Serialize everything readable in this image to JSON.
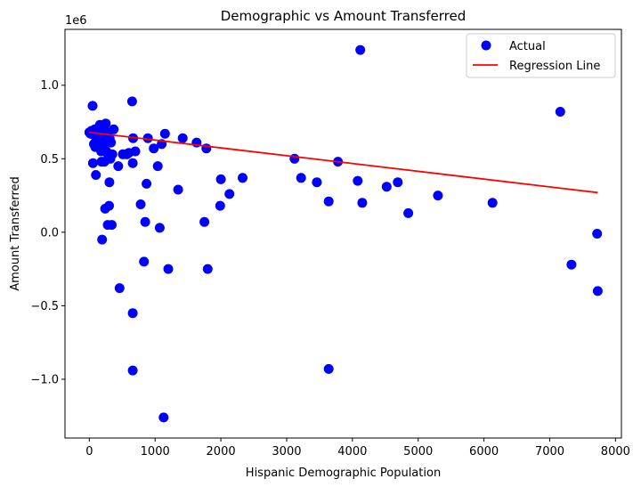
{
  "chart_data": {
    "type": "scatter",
    "title": "Demographic vs Amount Transferred",
    "xlabel": "Hispanic Demographic Population",
    "ylabel": "Amount Transferred",
    "y_offset_label": "1e6",
    "xlim": [
      -370,
      8090
    ],
    "ylim": [
      -1.4,
      1.38
    ],
    "xticks": [
      0,
      1000,
      2000,
      3000,
      4000,
      5000,
      6000,
      7000,
      8000
    ],
    "xtick_labels": [
      "0",
      "1000",
      "2000",
      "3000",
      "4000",
      "5000",
      "6000",
      "7000",
      "8000"
    ],
    "yticks": [
      -1.0,
      -0.5,
      0.0,
      0.5,
      1.0
    ],
    "ytick_labels": [
      "−1.0",
      "−0.5",
      "0.0",
      "0.5",
      "1.0"
    ],
    "grid": false,
    "legend_position": "top-right",
    "series": [
      {
        "name": "Actual",
        "kind": "scatter",
        "color": "#0000ff",
        "points": [
          [
            0,
            0.68
          ],
          [
            20,
            0.67
          ],
          [
            35,
            0.69
          ],
          [
            50,
            0.86
          ],
          [
            55,
            0.47
          ],
          [
            70,
            0.6
          ],
          [
            75,
            0.66
          ],
          [
            85,
            0.7
          ],
          [
            90,
            0.58
          ],
          [
            100,
            0.39
          ],
          [
            110,
            0.64
          ],
          [
            120,
            0.68
          ],
          [
            130,
            0.62
          ],
          [
            140,
            0.71
          ],
          [
            150,
            0.66
          ],
          [
            160,
            0.73
          ],
          [
            170,
            0.69
          ],
          [
            180,
            0.55
          ],
          [
            185,
            0.48
          ],
          [
            190,
            0.57
          ],
          [
            195,
            -0.05
          ],
          [
            200,
            0.63
          ],
          [
            210,
            0.59
          ],
          [
            220,
            0.71
          ],
          [
            230,
            0.48
          ],
          [
            240,
            0.16
          ],
          [
            250,
            0.74
          ],
          [
            260,
            0.55
          ],
          [
            270,
            0.68
          ],
          [
            280,
            0.05
          ],
          [
            290,
            0.52
          ],
          [
            300,
            0.18
          ],
          [
            305,
            0.34
          ],
          [
            310,
            0.64
          ],
          [
            320,
            0.5
          ],
          [
            330,
            0.61
          ],
          [
            340,
            0.05
          ],
          [
            350,
            0.53
          ],
          [
            370,
            0.7
          ],
          [
            440,
            0.45
          ],
          [
            460,
            -0.38
          ],
          [
            510,
            0.53
          ],
          [
            570,
            0.53
          ],
          [
            600,
            0.54
          ],
          [
            650,
            0.89
          ],
          [
            660,
            0.47
          ],
          [
            665,
            0.64
          ],
          [
            660,
            -0.55
          ],
          [
            660,
            -0.94
          ],
          [
            700,
            0.55
          ],
          [
            780,
            0.19
          ],
          [
            830,
            -0.2
          ],
          [
            850,
            0.07
          ],
          [
            870,
            0.33
          ],
          [
            890,
            0.64
          ],
          [
            980,
            0.57
          ],
          [
            1040,
            0.45
          ],
          [
            1070,
            0.03
          ],
          [
            1100,
            0.6
          ],
          [
            1130,
            -1.26
          ],
          [
            1150,
            0.67
          ],
          [
            1200,
            -0.25
          ],
          [
            1350,
            0.29
          ],
          [
            1420,
            0.64
          ],
          [
            1630,
            0.61
          ],
          [
            1750,
            0.07
          ],
          [
            1780,
            0.57
          ],
          [
            1800,
            -0.25
          ],
          [
            1990,
            0.18
          ],
          [
            2000,
            0.36
          ],
          [
            2130,
            0.26
          ],
          [
            2330,
            0.37
          ],
          [
            3120,
            0.5
          ],
          [
            3220,
            0.37
          ],
          [
            3460,
            0.34
          ],
          [
            3640,
            0.21
          ],
          [
            3640,
            -0.93
          ],
          [
            3780,
            0.48
          ],
          [
            4080,
            0.35
          ],
          [
            4120,
            1.24
          ],
          [
            4150,
            0.2
          ],
          [
            4520,
            0.31
          ],
          [
            4690,
            0.34
          ],
          [
            4850,
            0.13
          ],
          [
            5300,
            0.25
          ],
          [
            6130,
            0.2
          ],
          [
            7160,
            0.82
          ],
          [
            7330,
            -0.22
          ],
          [
            7720,
            -0.01
          ],
          [
            7730,
            -0.4
          ]
        ]
      },
      {
        "name": "Regression Line",
        "kind": "line",
        "color": "#ff0000",
        "points": [
          [
            0,
            0.68
          ],
          [
            7730,
            0.27
          ]
        ]
      }
    ]
  }
}
